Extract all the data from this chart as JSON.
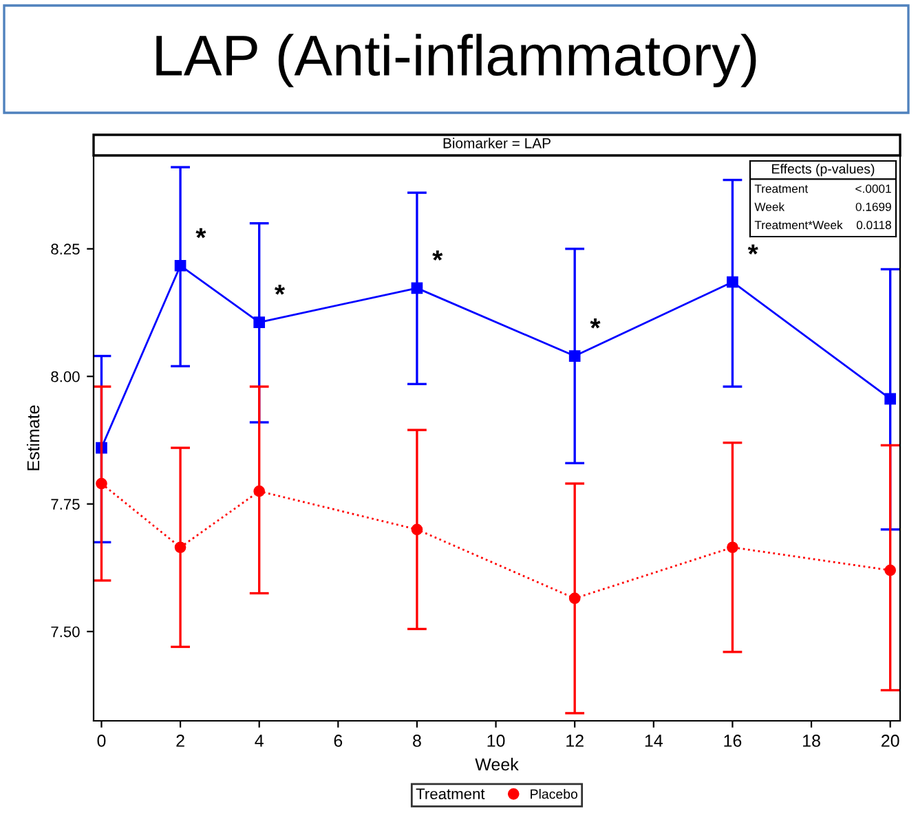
{
  "chart_data": {
    "type": "line",
    "title": "LAP (Anti-inflammatory)",
    "subtitle": "Biomarker = LAP",
    "xlabel": "Week",
    "ylabel": "Estimate",
    "legend_title": "Treatment",
    "legend": "bottom",
    "grid": false,
    "x": [
      0,
      2,
      4,
      8,
      12,
      16,
      20
    ],
    "series": [
      {
        "color": "#0000ff",
        "marker": "square",
        "line_style": "solid",
        "values": [
          7.86,
          8.217,
          8.106,
          8.173,
          8.04,
          8.185,
          7.956
        ],
        "errors": [
          [
            7.675,
            8.04
          ],
          [
            8.02,
            8.41
          ],
          [
            7.91,
            8.3
          ],
          [
            7.985,
            8.36
          ],
          [
            7.83,
            8.25
          ],
          [
            7.98,
            8.385
          ],
          [
            7.7,
            8.21
          ]
        ]
      },
      {
        "name": "Placebo",
        "color": "#ff0000",
        "marker": "circle",
        "line_style": "dotted",
        "values": [
          7.79,
          7.665,
          7.775,
          7.7,
          7.565,
          7.665,
          7.62
        ],
        "errors": [
          [
            7.6,
            7.98
          ],
          [
            7.47,
            7.86
          ],
          [
            7.575,
            7.98
          ],
          [
            7.505,
            7.895
          ],
          [
            7.34,
            7.79
          ],
          [
            7.46,
            7.87
          ],
          [
            7.385,
            7.865
          ]
        ]
      }
    ],
    "xlim": [
      -0.2,
      20.25
    ],
    "ylim": [
      7.325,
      8.433
    ],
    "xticks": [
      0,
      2,
      4,
      6,
      8,
      10,
      12,
      14,
      16,
      18,
      20
    ],
    "yticks": [
      {
        "value": 7.5,
        "label": "7.50"
      },
      7.75,
      {
        "value": 8.0,
        "label": "8.00"
      },
      8.25
    ],
    "annotations": [
      {
        "text": "*",
        "x": 2,
        "y": 8.217
      },
      {
        "text": "*",
        "x": 4,
        "y": 8.106
      },
      {
        "text": "*",
        "x": 8,
        "y": 8.173
      },
      {
        "text": "*",
        "x": 12,
        "y": 8.04
      },
      {
        "text": "*",
        "x": 16,
        "y": 8.185
      },
      "Effects (p-values)",
      "Treatment",
      "<.0001",
      "Week",
      "0.1699",
      "Treatment*Week",
      "0.0118"
    ]
  }
}
